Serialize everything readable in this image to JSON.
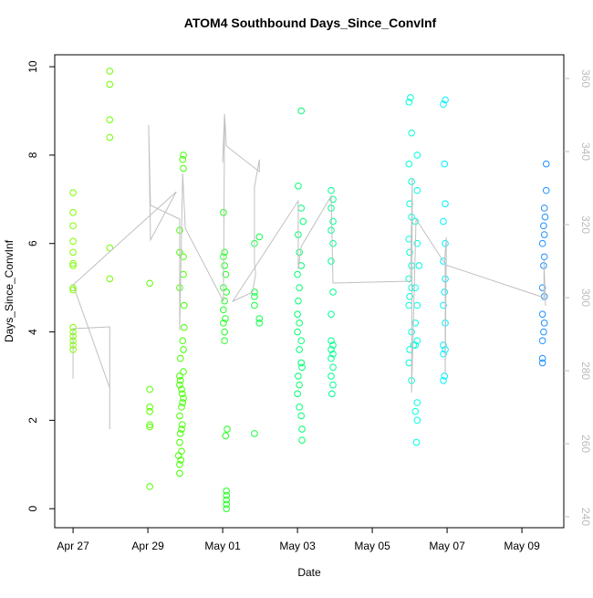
{
  "chart_data": {
    "type": "scatter",
    "title": "ATOM4 Southbound Days_Since_ConvInf",
    "x_label": "Date",
    "y_label": "Days_Since_ConvInf",
    "xlim": [
      -0.49,
      13.12
    ],
    "ylim": [
      -0.43,
      10.27
    ],
    "y2lim": [
      237,
      366.5
    ],
    "xticks": [
      {
        "value": 0,
        "label": "Apr 27"
      },
      {
        "value": 2,
        "label": "Apr 29"
      },
      {
        "value": 4,
        "label": "May 01"
      },
      {
        "value": 6,
        "label": "May 03"
      },
      {
        "value": 8,
        "label": "May 05"
      },
      {
        "value": 10,
        "label": "May 07"
      },
      {
        "value": 12,
        "label": "May 09"
      }
    ],
    "yticks": [
      0,
      2,
      4,
      6,
      8,
      10
    ],
    "y2ticks": [
      240,
      260,
      280,
      300,
      320,
      340,
      360
    ],
    "y2color": "#bbbbbb",
    "series": [
      {
        "color": "#80ff00",
        "x": [
          0,
          0,
          0,
          0,
          0,
          0,
          0,
          0,
          0,
          0,
          0,
          0,
          0,
          0,
          0
        ],
        "values": [
          7.15,
          6.7,
          6.4,
          6.05,
          5.8,
          5.55,
          5.5,
          5.0,
          4.95,
          4.1,
          4.0,
          3.9,
          3.8,
          3.7,
          3.6
        ]
      },
      {
        "color": "#70ff00",
        "x": [
          0.98,
          0.98,
          0.98,
          0.98,
          0.98,
          0.98
        ],
        "values": [
          9.9,
          9.6,
          8.8,
          8.4,
          5.9,
          5.2
        ]
      },
      {
        "color": "#58ff00",
        "x": [
          2.05,
          2.05,
          2.05,
          2.05,
          2.05,
          2.05,
          2.05
        ],
        "values": [
          5.1,
          2.7,
          2.3,
          2.2,
          1.9,
          1.85,
          0.5
        ]
      },
      {
        "color": "#44ff00",
        "x": [
          2.95,
          2.93,
          2.95,
          2.85,
          2.85,
          2.95,
          2.95,
          2.85,
          2.97,
          2.97,
          2.93,
          2.95,
          2.87,
          2.95,
          2.85,
          2.87,
          2.85,
          2.9,
          2.92,
          2.95,
          2.93,
          2.9,
          2.85,
          2.92,
          2.9,
          2.87,
          2.85,
          2.9,
          2.82,
          2.88,
          2.85,
          2.85
        ],
        "values": [
          8.0,
          7.9,
          7.7,
          6.3,
          5.8,
          5.7,
          5.3,
          5.0,
          4.6,
          4.1,
          3.8,
          3.6,
          3.4,
          3.1,
          3.0,
          2.9,
          2.8,
          2.7,
          2.6,
          2.5,
          2.4,
          2.3,
          2.1,
          1.9,
          1.8,
          1.7,
          1.5,
          1.3,
          1.2,
          1.1,
          1.0,
          0.8
        ]
      },
      {
        "color": "#22ff22",
        "x": [
          4.02,
          4.05,
          4.02,
          4.05,
          4.08,
          4.02,
          4.1,
          4.05,
          4.02,
          4.07,
          4.02,
          4.05,
          4.05,
          4.12,
          4.08,
          4.1,
          4.1,
          4.1,
          4.1,
          4.1
        ],
        "values": [
          6.7,
          5.8,
          5.7,
          5.5,
          5.3,
          5.0,
          4.9,
          4.7,
          4.5,
          4.3,
          4.2,
          4.0,
          3.8,
          1.8,
          1.65,
          0.4,
          0.3,
          0.2,
          0.1,
          0.0
        ]
      },
      {
        "color": "#12ff40",
        "x": [
          4.85,
          4.85,
          4.85,
          4.85,
          4.85
        ],
        "values": [
          6.0,
          4.9,
          4.8,
          4.6,
          1.7
        ]
      },
      {
        "color": "#10ff48",
        "x": [
          4.98,
          4.98,
          4.98
        ],
        "values": [
          6.15,
          4.3,
          4.2
        ]
      },
      {
        "color": "#00ff70",
        "x": [
          6.1,
          6.02,
          6.1,
          6.15,
          6.02,
          6.05,
          6.1,
          6.0,
          6.05,
          6.02,
          6.0,
          6.05,
          6.0,
          6.1,
          6.05,
          6.1,
          6.12,
          6.02,
          6.05,
          6.0,
          6.05,
          6.1,
          6.12,
          6.12
        ],
        "values": [
          9.0,
          7.3,
          6.8,
          6.5,
          6.2,
          5.8,
          5.5,
          5.3,
          5.0,
          4.7,
          4.4,
          4.2,
          4.0,
          3.8,
          3.6,
          3.3,
          3.2,
          3.0,
          2.8,
          2.6,
          2.3,
          2.1,
          1.8,
          1.55
        ]
      },
      {
        "color": "#00ff90",
        "x": [
          6.9,
          6.95,
          6.9,
          6.95,
          6.9,
          6.95,
          6.9,
          6.95,
          6.9,
          6.9,
          6.95,
          6.9,
          6.95,
          6.9,
          6.95,
          6.9,
          6.95,
          6.92
        ],
        "values": [
          7.2,
          7.0,
          6.8,
          6.5,
          6.3,
          6.0,
          5.6,
          4.9,
          4.4,
          3.8,
          3.7,
          3.6,
          3.5,
          3.4,
          3.2,
          3.0,
          2.8,
          2.6
        ]
      },
      {
        "color": "#00ffd8",
        "x": [
          9.02,
          8.98,
          9.05,
          8.98,
          9.05,
          9.0,
          9.05,
          8.98,
          9.0,
          9.05,
          8.98,
          9.05,
          9.0,
          8.98,
          9.05,
          9.1,
          9.0,
          8.98,
          9.05
        ],
        "values": [
          9.3,
          9.2,
          8.5,
          7.8,
          7.4,
          6.9,
          6.6,
          6.1,
          5.8,
          5.5,
          5.2,
          5.0,
          4.8,
          4.6,
          4.0,
          3.7,
          3.6,
          3.3,
          2.9
        ]
      },
      {
        "color": "#00ffe4",
        "x": [
          9.2,
          9.2,
          9.15,
          9.2,
          9.25,
          9.15,
          9.2,
          9.15,
          9.2,
          9.15,
          9.2,
          9.15,
          9.2,
          9.18
        ],
        "values": [
          8.0,
          7.2,
          6.5,
          6.0,
          5.5,
          5.0,
          4.6,
          4.2,
          3.8,
          3.7,
          2.4,
          2.2,
          2.0,
          1.5
        ]
      },
      {
        "color": "#00f0ff",
        "x": [
          9.95,
          9.9,
          9.93,
          9.95,
          9.9,
          9.95,
          9.9,
          9.95,
          9.93,
          9.9,
          9.95,
          9.9,
          9.95,
          9.9,
          9.93,
          9.9
        ],
        "values": [
          9.25,
          9.15,
          7.8,
          6.9,
          6.5,
          6.0,
          5.6,
          5.2,
          4.9,
          4.6,
          4.2,
          3.7,
          3.6,
          3.5,
          3.0,
          2.9
        ]
      },
      {
        "color": "#1e90ff",
        "x": [
          12.65,
          12.65,
          12.6,
          12.62,
          12.58,
          12.6,
          12.55,
          12.6,
          12.58,
          12.55,
          12.6,
          12.55,
          12.6,
          12.58,
          12.55,
          12.55,
          12.55
        ],
        "values": [
          7.8,
          7.2,
          6.8,
          6.6,
          6.4,
          6.2,
          6.0,
          5.7,
          5.5,
          5.0,
          4.8,
          4.4,
          4.2,
          4.0,
          3.8,
          3.4,
          3.3
        ]
      },
      {
        "type": "line",
        "axis": "y2",
        "color": "#c0c0c0",
        "x": [
          0,
          0,
          0.98,
          0.98,
          0.98,
          0,
          2.76,
          2.07,
          2.02,
          2.07,
          2.85,
          2.85,
          2.93,
          3.0,
          4.02,
          4.05,
          4.0,
          4.05,
          4.1,
          4.98,
          4.98,
          4.85,
          4.85,
          4.88,
          4.8,
          4.27,
          6.02,
          6.02,
          6.1,
          6.9,
          6.95,
          9.02,
          9.07,
          9.05,
          9.17,
          9.93,
          9.98,
          9.95,
          9.95,
          12.59,
          12.59,
          12.63
        ],
        "values": [
          277.8,
          291.5,
          292,
          264,
          275.3,
          303.5,
          329,
          315.8,
          347.3,
          325.3,
          321.5,
          291,
          334,
          319,
          299,
          347.8,
          337,
          350.3,
          341.5,
          334.5,
          337.8,
          330.3,
          309.5,
          306.5,
          301.5,
          299,
          326.5,
          307.8,
          314,
          327.8,
          304,
          304.5,
          332.8,
          274,
          321.5,
          309.5,
          316.5,
          279,
          309,
          300,
          310.3,
          297.8
        ]
      }
    ]
  }
}
